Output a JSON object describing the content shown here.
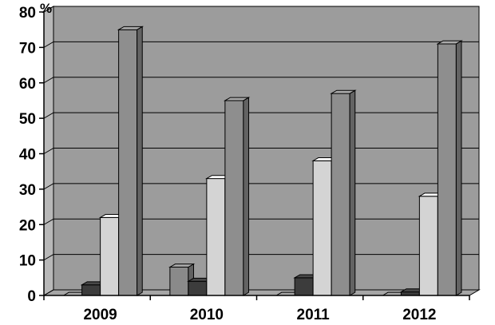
{
  "chart_data": {
    "type": "bar",
    "subtype": "3d-clustered-column",
    "unit_label": "%",
    "categories": [
      "2009",
      "2010",
      "2011",
      "2012"
    ],
    "series": [
      {
        "values": [
          0,
          8,
          0,
          0
        ]
      },
      {
        "values": [
          3,
          4,
          5,
          1
        ]
      },
      {
        "values": [
          22,
          33,
          38,
          28
        ]
      },
      {
        "values": [
          75,
          55,
          57,
          71
        ]
      }
    ],
    "ylim": [
      0,
      80
    ],
    "yticks": [
      "0",
      "10",
      "20",
      "30",
      "40",
      "50",
      "60",
      "70",
      "80"
    ],
    "grid": true,
    "legend": "none"
  },
  "colors": {
    "plot_background": "#9c9c9c",
    "wall": "#b8b8b8",
    "floor": "#a6a6a6",
    "gridline": "#000000",
    "series": [
      "#8a8a8a",
      "#3c3c3c",
      "#d4d4d4",
      "#8e8e8e"
    ]
  }
}
